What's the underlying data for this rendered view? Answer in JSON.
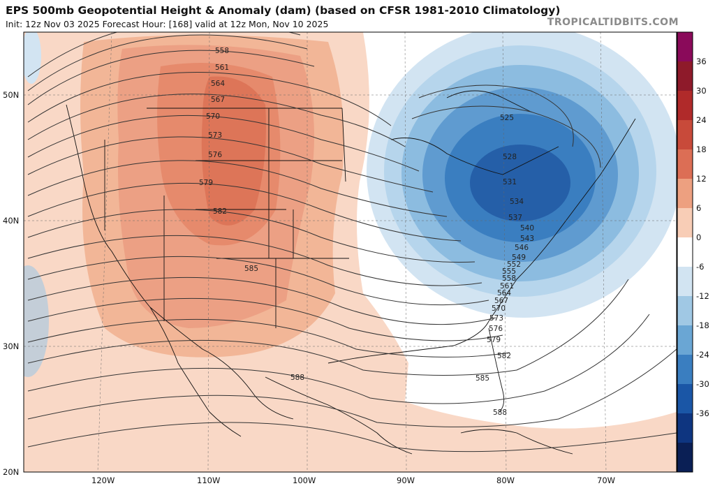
{
  "header": {
    "title": "EPS 500mb Geopotential Height & Anomaly (dam) (based on CFSR 1981-2010 Climatology)",
    "subtitle": "Init: 12z Nov 03 2025   Forecast Hour: [168]   valid at 12z Mon, Nov 10 2025",
    "watermark": "TROPICALTIDBITS.COM"
  },
  "axes": {
    "lat_labels": [
      "50N",
      "40N",
      "30N",
      "20N"
    ],
    "lon_labels": [
      "120W",
      "110W",
      "100W",
      "90W",
      "80W",
      "70W"
    ]
  },
  "colorbar": {
    "labels": [
      "36",
      "30",
      "24",
      "18",
      "12",
      "6",
      "0",
      "-6",
      "-12",
      "-18",
      "-24",
      "-30",
      "-36"
    ],
    "colors": [
      "#8a0a5a",
      "#8e1a2a",
      "#b02a2a",
      "#c84a3a",
      "#dc6e55",
      "#eda080",
      "#f8cdb6",
      "#ffffff",
      "#d2e4f2",
      "#a0c8e4",
      "#6aa6d4",
      "#3a7ec0",
      "#1a56a6",
      "#0e3580",
      "#0a1f55"
    ]
  },
  "contours": {
    "west_labels": [
      "558",
      "561",
      "564",
      "567",
      "570",
      "573",
      "576",
      "579",
      "582",
      "585",
      "588"
    ],
    "east_labels": [
      "525",
      "528",
      "531",
      "534",
      "537",
      "540",
      "543",
      "546",
      "549",
      "552",
      "555",
      "558",
      "561",
      "564",
      "567",
      "570",
      "573",
      "576",
      "579",
      "582",
      "585",
      "588"
    ]
  }
}
